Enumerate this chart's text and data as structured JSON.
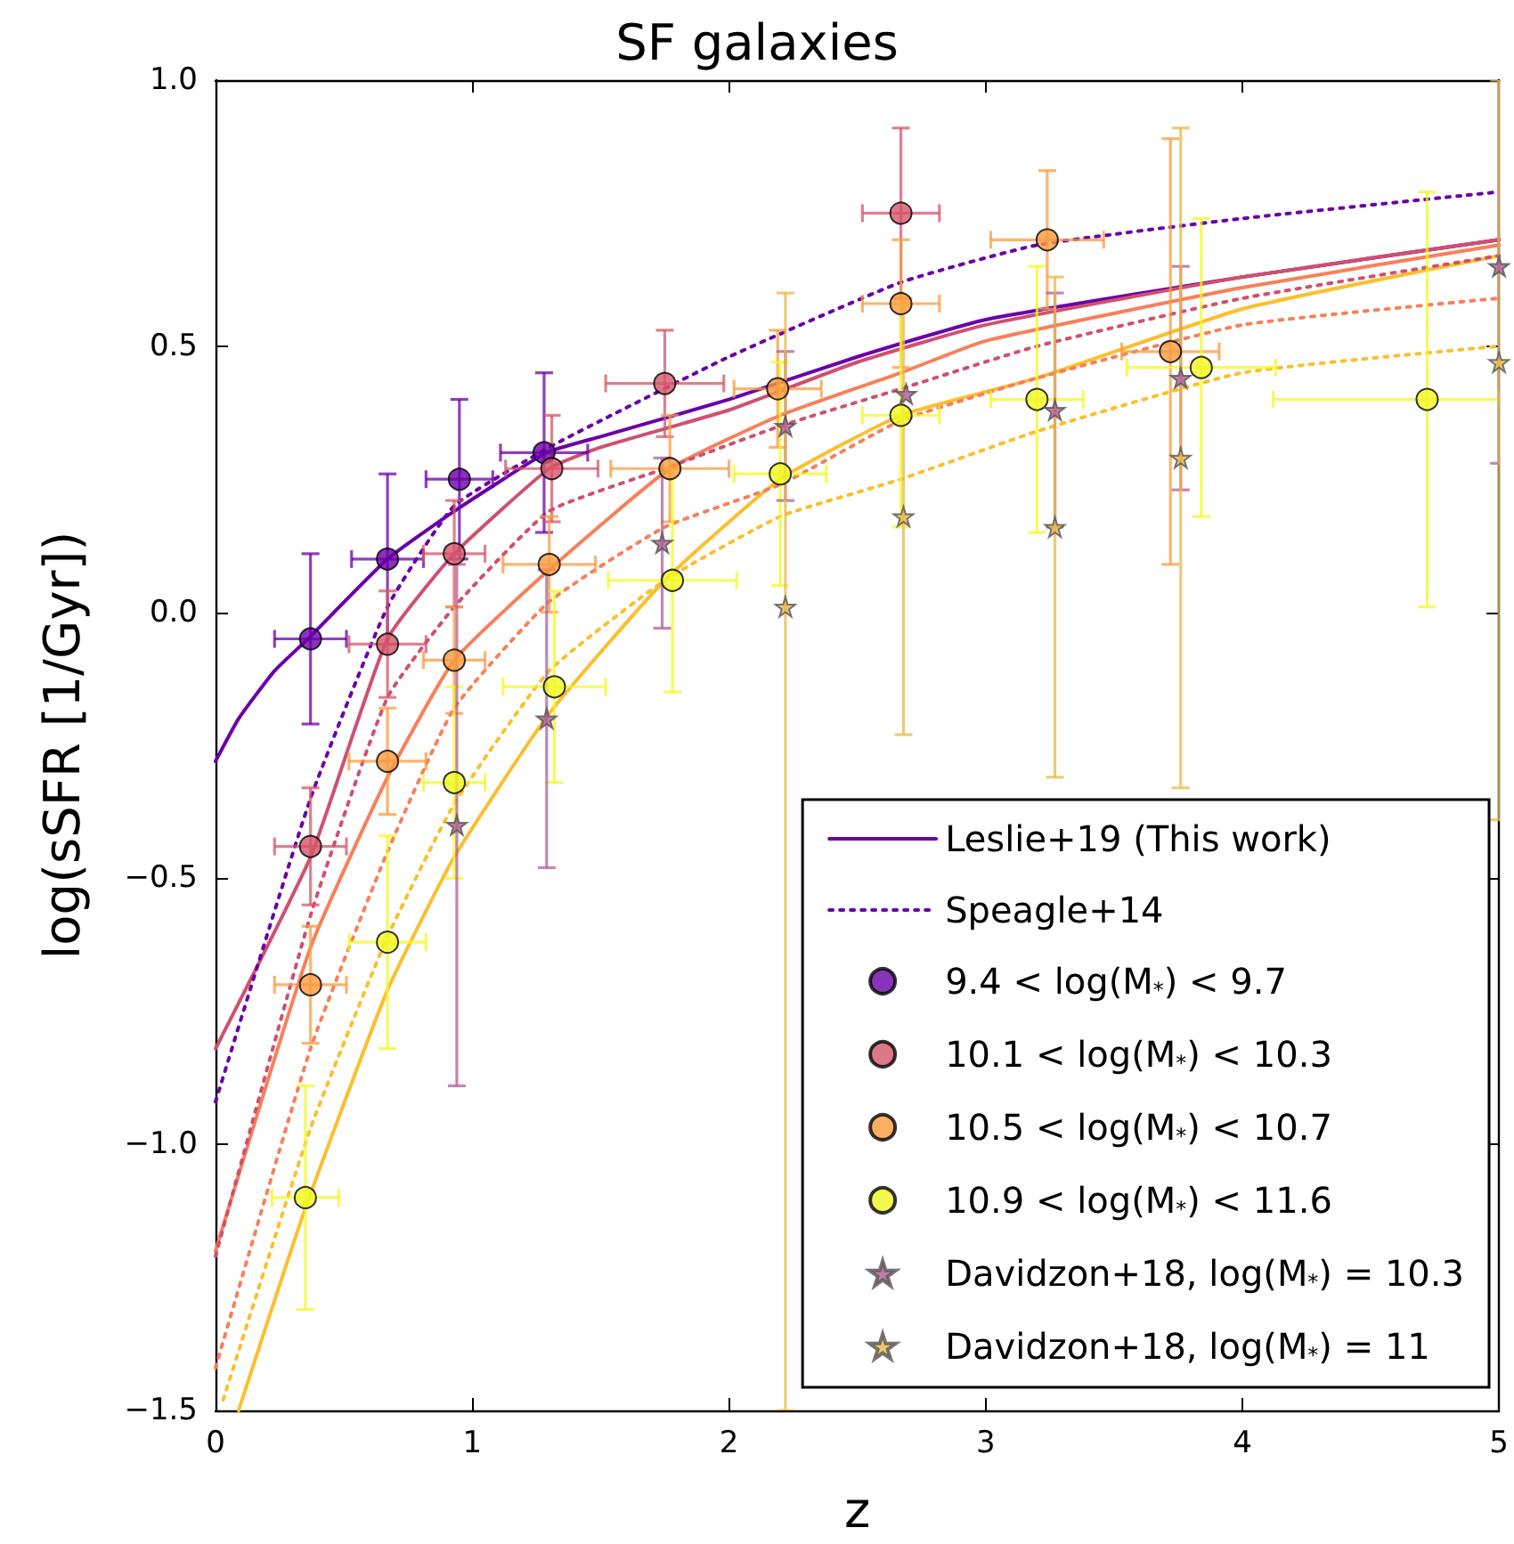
{
  "chart_data": {
    "type": "line",
    "title": "SF galaxies",
    "xlabel": "z",
    "ylabel": "log(sSFR [1/Gyr])",
    "xlim": [
      0,
      5
    ],
    "xticks": [
      0,
      1,
      2,
      3,
      4,
      5
    ],
    "ylim": [
      -1.5,
      1.0
    ],
    "yticks": [
      {
        "value": -1.5,
        "label": "−1.5"
      },
      {
        "value": -1,
        "label": "−1.0"
      },
      {
        "value": -0.5,
        "label": "−0.5"
      },
      {
        "value": 0,
        "label": "0.0"
      },
      {
        "value": 0.5,
        "label": "0.5"
      },
      {
        "value": 1,
        "label": "1.0"
      }
    ],
    "grid": false,
    "legend": "bottom right",
    "series": [
      {
        "name": "Leslie+19 (This work)",
        "color": "#6a00a8",
        "marker": "none",
        "line_style": "solid",
        "x": [
          0,
          0.09,
          0.23,
          0.36,
          0.67,
          0.93,
          1.29,
          1.5,
          2,
          2.5,
          3,
          4,
          5
        ],
        "values": [
          -0.28,
          -0.2,
          -0.11,
          -0.05,
          0.1,
          0.19,
          0.3,
          0.33,
          0.4,
          0.48,
          0.55,
          0.63,
          0.7
        ]
      },
      {
        "color": "#d0506f",
        "marker": "none",
        "line_style": "solid",
        "x": [
          0,
          0.37,
          0.67,
          0.93,
          1.3,
          1.5,
          2,
          2.5,
          3,
          4,
          5
        ],
        "values": [
          -0.82,
          -0.46,
          -0.05,
          0.11,
          0.27,
          0.31,
          0.38,
          0.47,
          0.54,
          0.63,
          0.7
        ]
      },
      {
        "color": "#f7805a",
        "marker": "none",
        "line_style": "solid",
        "x": [
          0,
          0.37,
          0.67,
          0.93,
          1.3,
          1.77,
          2.2,
          2.67,
          3,
          4,
          5
        ],
        "values": [
          -1.2,
          -0.63,
          -0.31,
          -0.09,
          0.08,
          0.27,
          0.37,
          0.45,
          0.51,
          0.61,
          0.69
        ]
      },
      {
        "color": "#fcbf2c",
        "marker": "none",
        "line_style": "solid",
        "x": [
          0.09,
          0.35,
          0.67,
          0.93,
          1.3,
          1.75,
          2.2,
          2.67,
          3.2,
          4,
          5
        ],
        "values": [
          -1.5,
          -1.12,
          -0.71,
          -0.46,
          -0.19,
          0.06,
          0.25,
          0.37,
          0.44,
          0.57,
          0.67
        ]
      },
      {
        "name": "Speagle+14",
        "color": "#6a00a8",
        "marker": "none",
        "line_style": "dotted",
        "x": [
          0,
          0.37,
          0.67,
          0.93,
          1.3,
          1.5,
          2,
          2.67,
          3.2,
          4,
          5
        ],
        "values": [
          -0.92,
          -0.35,
          0.01,
          0.2,
          0.31,
          0.36,
          0.48,
          0.62,
          0.69,
          0.74,
          0.79
        ]
      },
      {
        "color": "#d0506f",
        "marker": "none",
        "line_style": "dotted",
        "x": [
          0,
          0.37,
          0.67,
          0.93,
          1.3,
          1.75,
          2.2,
          2.67,
          3.2,
          4,
          5
        ],
        "values": [
          -1.21,
          -0.57,
          -0.16,
          0.01,
          0.19,
          0.27,
          0.35,
          0.42,
          0.5,
          0.59,
          0.67
        ]
      },
      {
        "color": "#f7805a",
        "marker": "none",
        "line_style": "dotted",
        "x": [
          0,
          0.37,
          0.67,
          0.93,
          1.3,
          1.75,
          2.2,
          2.67,
          3.2,
          4,
          5
        ],
        "values": [
          -1.42,
          -0.82,
          -0.45,
          -0.18,
          0.02,
          0.16,
          0.24,
          0.36,
          0.44,
          0.54,
          0.59
        ]
      },
      {
        "color": "#fcbf2c",
        "marker": "none",
        "line_style": "dotted",
        "x": [
          0.03,
          0.37,
          0.67,
          0.93,
          1.3,
          1.75,
          2.2,
          2.67,
          3.2,
          4,
          5
        ],
        "values": [
          -1.48,
          -0.97,
          -0.61,
          -0.36,
          -0.11,
          0.06,
          0.18,
          0.25,
          0.34,
          0.45,
          0.5
        ]
      },
      {
        "name": "9.4 < log(M$_{*}$) < 9.7",
        "type": "scatter",
        "color": "#6a00a8",
        "marker": "circle",
        "x": [
          0.37,
          0.67,
          0.95,
          1.28
        ],
        "values": [
          -0.05,
          0.1,
          0.25,
          0.3
        ],
        "errors": [
          0.16,
          0.16,
          0.15,
          0.15
        ],
        "xerrors": [
          0.14,
          0.14,
          0.13,
          0.17
        ]
      },
      {
        "name": "10.1 < log(M$_{*}$) < 10.3",
        "type": "scatter",
        "color": "#d5566a",
        "marker": "circle",
        "x": [
          0.37,
          0.67,
          0.93,
          1.31,
          1.75,
          2.67
        ],
        "values": [
          -0.44,
          -0.06,
          0.11,
          0.27,
          0.43,
          0.75
        ],
        "errors": [
          0.11,
          0.1,
          0.1,
          0.1,
          0.1,
          0.16
        ],
        "xerrors": [
          0.14,
          0.15,
          0.12,
          0.18,
          0.23,
          0.15
        ]
      },
      {
        "name": "10.5 < log(M$_{*}$) < 10.7",
        "type": "scatter",
        "color": "#f99b3f",
        "marker": "circle",
        "x": [
          0.37,
          0.67,
          0.93,
          1.3,
          1.77,
          2.19,
          2.67,
          3.24,
          3.72
        ],
        "values": [
          -0.7,
          -0.28,
          -0.09,
          0.09,
          0.27,
          0.42,
          0.58,
          0.7,
          0.49
        ],
        "errors": [
          0.11,
          0.1,
          0.1,
          0.09,
          0.1,
          0.11,
          0.12,
          0.13,
          0.4
        ],
        "xerrors": [
          0.14,
          0.15,
          0.12,
          0.18,
          0.23,
          0.17,
          0.15,
          0.22,
          0.19
        ]
      },
      {
        "name": "10.9 < log(M$_{*}$) < 11.6",
        "type": "scatter",
        "color": "#f0f921",
        "marker": "circle",
        "x": [
          0.35,
          0.67,
          0.93,
          1.32,
          1.78,
          2.2,
          2.67,
          3.2,
          3.84,
          4.72
        ],
        "values": [
          -1.1,
          -0.62,
          -0.32,
          -0.14,
          0.06,
          0.26,
          0.37,
          0.4,
          0.46,
          0.4
        ],
        "errors": [
          0.21,
          0.2,
          0.18,
          0.18,
          0.21,
          0.21,
          0.21,
          0.25,
          0.28,
          0.39
        ],
        "xerrors": [
          0.13,
          0.15,
          0.12,
          0.2,
          0.25,
          0.18,
          0.15,
          0.18,
          0.29,
          [
            4.12,
            5
          ]
        ]
      },
      {
        "name": "Davidzon+18, log(M$_{*}$) = 10.3",
        "type": "scatter",
        "color": "#b05d95",
        "marker": "star",
        "x": [
          0.94,
          1.29,
          1.74,
          2.22,
          2.69,
          3.27,
          3.76,
          5
        ],
        "values": [
          -0.4,
          -0.2,
          0.13,
          0.35,
          0.41,
          0.38,
          0.44,
          0.65
        ],
        "errors": [
          0.49,
          0.28,
          0.16,
          0.14,
          null,
          0.22,
          0.21,
          0.37
        ]
      },
      {
        "name": "Davidzon+18, log(M$_{*}$) = 11",
        "type": "scatter",
        "color": "#e8b84a",
        "marker": "star",
        "x": [
          2.22,
          2.68,
          3.27,
          3.76,
          5
        ],
        "values": [
          0.01,
          0.18,
          0.16,
          0.29,
          0.47
        ],
        "errors": [
          [
            -1.5,
            0.6
          ],
          0.41,
          0.47,
          0.62,
          [
            -0.39,
            1.0
          ]
        ]
      }
    ]
  }
}
